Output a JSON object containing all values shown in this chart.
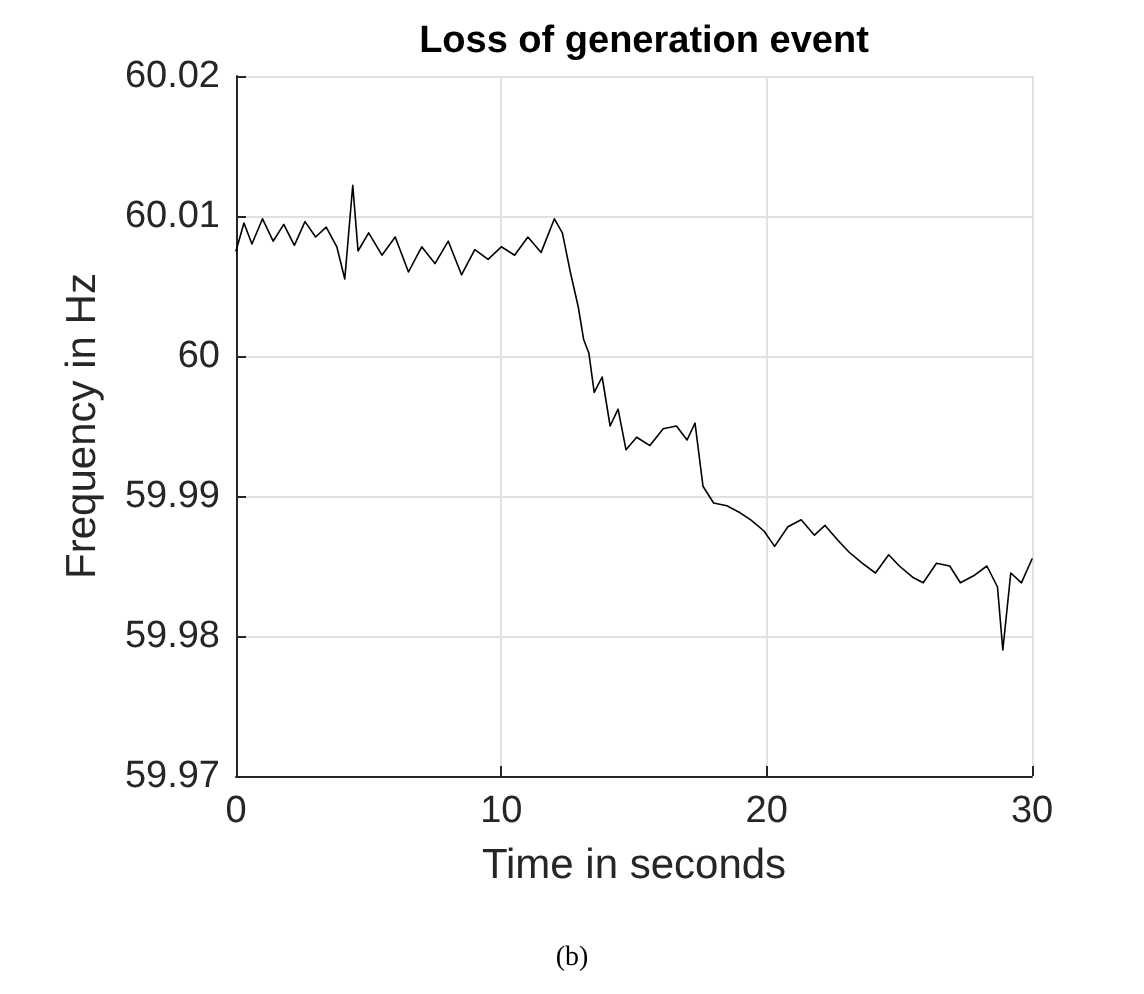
{
  "chart_data": {
    "type": "line",
    "title": "Loss of generation event",
    "xlabel": "Time in seconds",
    "ylabel": "Frequency in Hz",
    "annotations": [
      "(b)"
    ],
    "x": [
      0,
      0.3,
      0.6,
      1,
      1.4,
      1.8,
      2.2,
      2.6,
      3,
      3.4,
      3.8,
      4.1,
      4.4,
      4.6,
      5,
      5.5,
      6,
      6.5,
      7,
      7.5,
      8,
      8.5,
      9,
      9.5,
      10,
      10.5,
      11,
      11.5,
      12,
      12.3,
      12.6,
      12.9,
      13.1,
      13.3,
      13.5,
      13.8,
      14.1,
      14.4,
      14.7,
      15.1,
      15.6,
      16.1,
      16.6,
      17,
      17.3,
      17.6,
      18,
      18.5,
      19,
      19.4,
      19.9,
      20.3,
      20.8,
      21.3,
      21.8,
      22.2,
      22.7,
      23.1,
      23.6,
      24.1,
      24.6,
      25,
      25.5,
      25.9,
      26.4,
      26.9,
      27.3,
      27.8,
      28.3,
      28.7,
      28.9,
      29.2,
      29.6,
      30
    ],
    "series": [
      {
        "color": "#000000",
        "values": [
          60.0075,
          60.0095,
          60.008,
          60.0098,
          60.0082,
          60.0094,
          60.0079,
          60.0096,
          60.0085,
          60.0092,
          60.0078,
          60.0055,
          60.0122,
          60.0075,
          60.0088,
          60.0072,
          60.0085,
          60.006,
          60.0078,
          60.0066,
          60.0082,
          60.0058,
          60.0076,
          60.0069,
          60.0078,
          60.0072,
          60.0085,
          60.0074,
          60.0098,
          60.0088,
          60.006,
          60.0035,
          60.0012,
          60.0002,
          59.9974,
          59.9985,
          59.995,
          59.9962,
          59.9933,
          59.9942,
          59.9936,
          59.9948,
          59.995,
          59.994,
          59.9952,
          59.9907,
          59.9895,
          59.9893,
          59.9888,
          59.9883,
          59.9875,
          59.9864,
          59.9878,
          59.9883,
          59.9872,
          59.9879,
          59.9868,
          59.986,
          59.9852,
          59.9845,
          59.9858,
          59.985,
          59.9842,
          59.9838,
          59.9852,
          59.985,
          59.9838,
          59.9843,
          59.985,
          59.9835,
          59.979,
          59.9845,
          59.9838,
          59.9855
        ]
      }
    ],
    "xlim": [
      0,
      30
    ],
    "ylim": [
      59.97,
      60.02
    ],
    "xticks": [
      0,
      10,
      20,
      30
    ],
    "yticks": [
      59.97,
      59.98,
      59.99,
      60,
      60.01,
      60.02
    ],
    "grid": true,
    "marker": "none",
    "line_style": "solid"
  }
}
